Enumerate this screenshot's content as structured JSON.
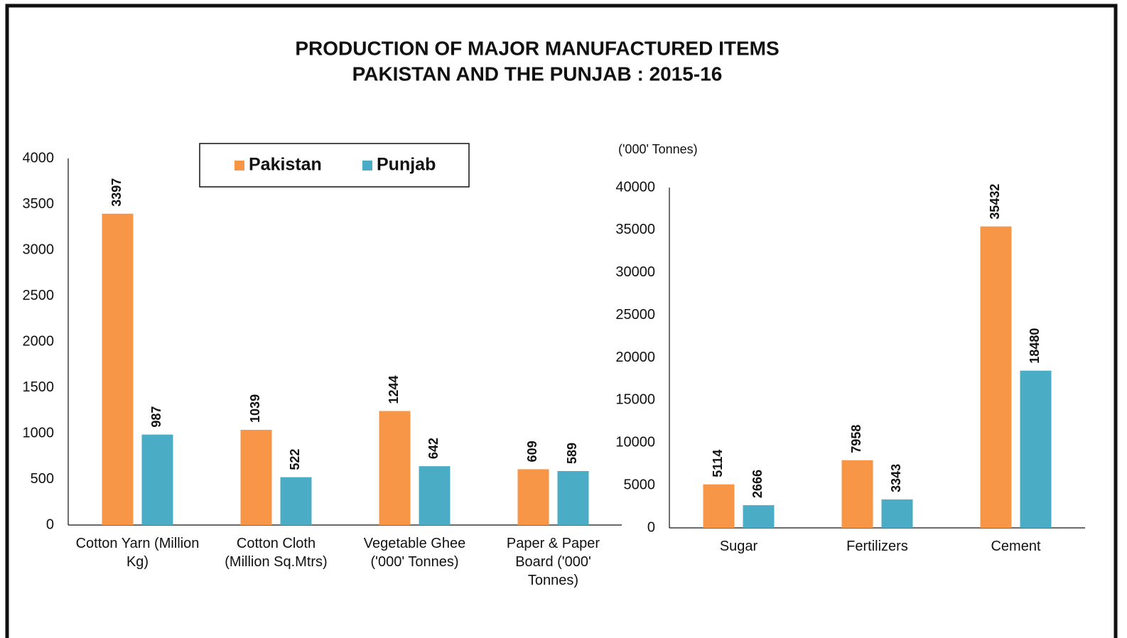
{
  "title": [
    "PRODUCTION OF MAJOR MANUFACTURED ITEMS",
    "PAKISTAN AND THE  PUNJAB : 2015-16"
  ],
  "chart_data": [
    {
      "type": "bar",
      "categories": [
        "Cotton Yarn (Million Kg)",
        "Cotton Cloth (Million Sq.Mtrs)",
        "Vegetable Ghee ('000' Tonnes)",
        "Paper & Paper Board ('000' Tonnes)"
      ],
      "series": [
        {
          "name": "Pakistan",
          "color": "#f79646",
          "values": [
            3397,
            1039,
            1244,
            609
          ]
        },
        {
          "name": "Punjab",
          "color": "#4bacc6",
          "values": [
            987,
            522,
            642,
            589
          ]
        }
      ],
      "ylim": [
        0,
        4000
      ],
      "yticks": [
        0,
        500,
        1000,
        1500,
        2000,
        2500,
        3000,
        3500,
        4000
      ],
      "grid": false,
      "legend": "top"
    },
    {
      "type": "bar",
      "y_label": "('000' Tonnes)",
      "categories": [
        "Sugar",
        "Fertilizers",
        "Cement"
      ],
      "series": [
        {
          "color": "#f79646",
          "values": [
            5114,
            7958,
            35432
          ]
        },
        {
          "color": "#4bacc6",
          "values": [
            2666,
            3343,
            18480
          ]
        }
      ],
      "ylim": [
        0,
        40000
      ],
      "yticks": [
        0,
        5000,
        10000,
        15000,
        20000,
        25000,
        30000,
        35000,
        40000
      ],
      "grid": false
    }
  ]
}
